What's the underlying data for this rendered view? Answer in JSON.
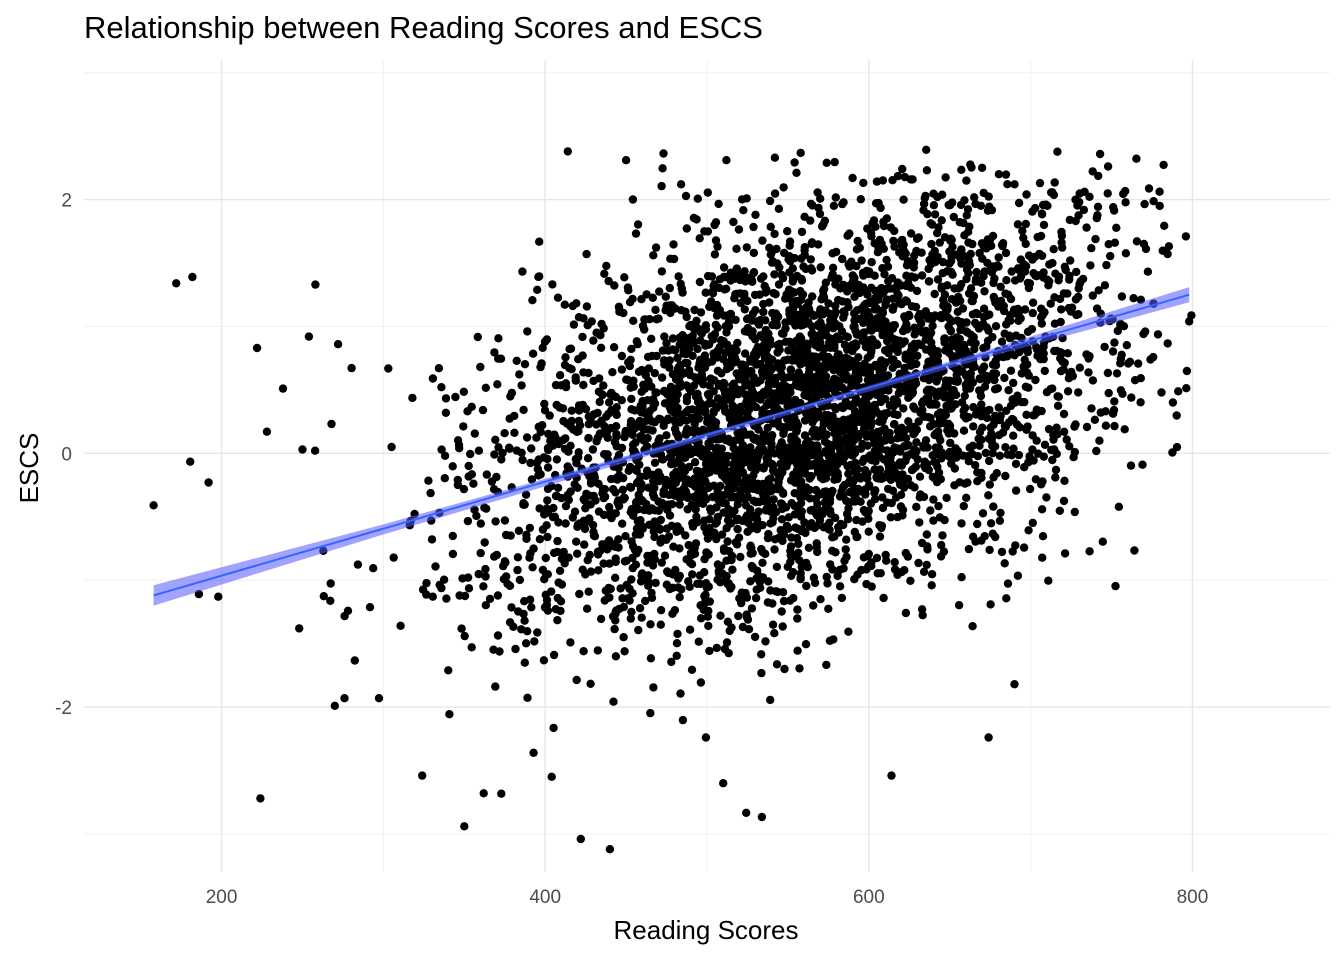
{
  "chart_data": {
    "type": "scatter",
    "title": "Relationship between Reading Scores and ESCS",
    "xlabel": "Reading Scores",
    "ylabel": "ESCS",
    "xlim": [
      115,
      885
    ],
    "ylim": [
      -3.3,
      3.1
    ],
    "x_ticks": [
      200,
      400,
      600,
      800
    ],
    "x_tick_labels": [
      "200",
      "400",
      "600",
      "800"
    ],
    "y_ticks": [
      -2,
      0,
      2
    ],
    "y_tick_labels": [
      "-2",
      "0",
      "2"
    ],
    "x_minor_gridlines": [
      300,
      500,
      700
    ],
    "y_minor_gridlines": [
      -3,
      -1,
      1,
      3
    ],
    "grid": true,
    "legend": "none",
    "point_color": "#000000",
    "fit_line_color": "#3366ff",
    "fit_band_color": "#5555ff",
    "cloud": {
      "n_points": 4200,
      "x_mean": 560,
      "x_sd": 95,
      "y_mean": 0.35,
      "y_sd": 0.85,
      "correlation": 0.45,
      "x_range": [
        160,
        800
      ],
      "y_range": [
        -3.1,
        2.4
      ]
    },
    "outliers": [
      {
        "x": 158,
        "y": -0.41
      },
      {
        "x": 172,
        "y": 1.34
      },
      {
        "x": 182,
        "y": 1.39
      },
      {
        "x": 192,
        "y": -0.23
      },
      {
        "x": 198,
        "y": -1.13
      },
      {
        "x": 186,
        "y": -1.11
      },
      {
        "x": 222,
        "y": 0.83
      },
      {
        "x": 224,
        "y": -2.72
      },
      {
        "x": 228,
        "y": 0.17
      },
      {
        "x": 238,
        "y": 0.51
      },
      {
        "x": 258,
        "y": 1.33
      },
      {
        "x": 254,
        "y": 0.92
      },
      {
        "x": 250,
        "y": 0.03
      },
      {
        "x": 248,
        "y": -1.38
      },
      {
        "x": 270,
        "y": -1.99
      },
      {
        "x": 276,
        "y": -1.93
      },
      {
        "x": 272,
        "y": 0.86
      },
      {
        "x": 324,
        "y": -2.54
      },
      {
        "x": 350,
        "y": -2.94
      },
      {
        "x": 362,
        "y": -2.68
      },
      {
        "x": 404,
        "y": -2.55
      },
      {
        "x": 422,
        "y": -3.04
      },
      {
        "x": 440,
        "y": -3.12
      },
      {
        "x": 414,
        "y": 2.38
      },
      {
        "x": 450,
        "y": 2.31
      },
      {
        "x": 512,
        "y": 2.31
      },
      {
        "x": 574,
        "y": 2.29
      },
      {
        "x": 590,
        "y": 2.17
      },
      {
        "x": 670,
        "y": 2.25
      },
      {
        "x": 690,
        "y": 2.12
      },
      {
        "x": 730,
        "y": 1.98
      },
      {
        "x": 770,
        "y": 1.65
      },
      {
        "x": 798,
        "y": 1.04
      },
      {
        "x": 776,
        "y": 1.18
      },
      {
        "x": 510,
        "y": -2.6
      },
      {
        "x": 614,
        "y": -2.54
      },
      {
        "x": 674,
        "y": -2.24
      },
      {
        "x": 690,
        "y": -1.82
      },
      {
        "x": 484,
        "y": 2.12
      },
      {
        "x": 530,
        "y": 1.88
      }
    ],
    "fit_line": {
      "x_start": 158,
      "y_start": -1.12,
      "x_end": 798,
      "y_end": 1.25
    },
    "confidence_band": [
      {
        "x": 158,
        "lo": -1.2,
        "hi": -1.04
      },
      {
        "x": 300,
        "lo": -0.64,
        "hi": -0.56
      },
      {
        "x": 450,
        "lo": -0.07,
        "hi": -0.02
      },
      {
        "x": 560,
        "lo": 0.34,
        "hi": 0.38
      },
      {
        "x": 680,
        "lo": 0.78,
        "hi": 0.84
      },
      {
        "x": 798,
        "lo": 1.19,
        "hi": 1.31
      }
    ]
  }
}
